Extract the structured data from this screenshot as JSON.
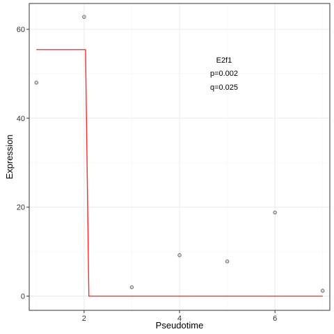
{
  "chart_data": {
    "type": "scatter",
    "xlabel": "Pseudotime",
    "ylabel": "Expression",
    "xlim": [
      0.85,
      7.15
    ],
    "ylim": [
      -3.2,
      65.8
    ],
    "x_ticks": [
      2,
      4,
      6
    ],
    "y_ticks": [
      0,
      20,
      40,
      60
    ],
    "x_tick_labels": [
      "2",
      "4",
      "6"
    ],
    "y_tick_labels": [
      "0",
      "20",
      "40",
      "60"
    ],
    "grid": true,
    "points": {
      "x": [
        1,
        2,
        3,
        4,
        5,
        6,
        7
      ],
      "y": [
        48.0,
        62.8,
        2.0,
        9.2,
        7.8,
        18.8,
        1.2
      ]
    },
    "fit_line": {
      "x": [
        1,
        2.03,
        2.1,
        7
      ],
      "y": [
        55.4,
        55.4,
        0,
        0
      ]
    },
    "annotations": [
      "E2f1",
      "p=0.002",
      "q=0.025"
    ],
    "colors": {
      "line": "#ff2a2a",
      "point_stroke": "#555555",
      "point_fill": "#bfbfbf",
      "panel_border": "#333333",
      "grid_major": "#ebebeb",
      "grid_minor": "#f5f5f5"
    }
  }
}
